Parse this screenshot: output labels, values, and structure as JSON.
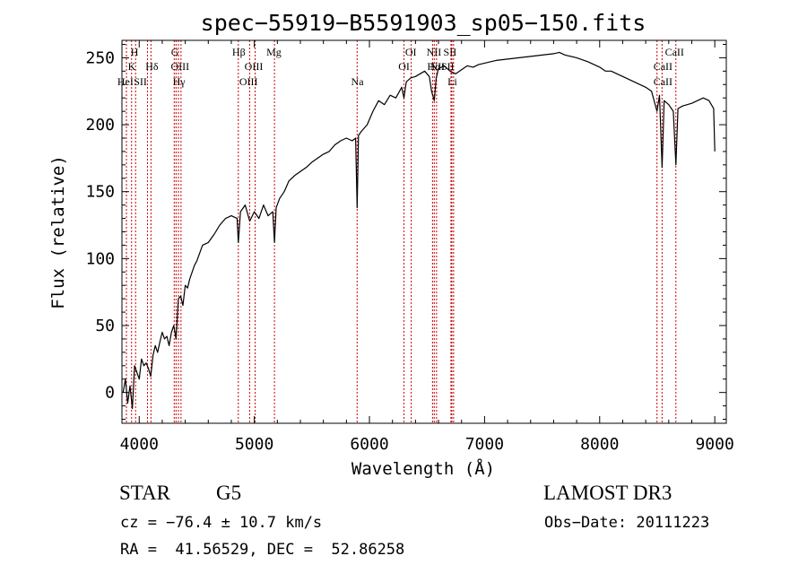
{
  "chart_data": {
    "type": "line",
    "title": "spec−55919−B5591903_sp05−150.fits",
    "xlabel": "Wavelength (Å)",
    "ylabel": "Flux (relative)",
    "xlim": [
      3850,
      9100
    ],
    "ylim": [
      -23,
      263
    ],
    "x_ticks": [
      4000,
      5000,
      6000,
      7000,
      8000,
      9000
    ],
    "y_ticks": [
      0,
      50,
      100,
      150,
      200,
      250
    ],
    "grid": false,
    "colors": {
      "line": "#000000",
      "marker": "#cc0000",
      "axis": "#000000"
    },
    "series": [
      {
        "name": "flux",
        "x": [
          3860,
          3880,
          3900,
          3920,
          3940,
          3960,
          3980,
          4000,
          4020,
          4040,
          4060,
          4080,
          4100,
          4120,
          4140,
          4160,
          4180,
          4200,
          4220,
          4240,
          4260,
          4280,
          4300,
          4320,
          4340,
          4360,
          4380,
          4400,
          4420,
          4440,
          4460,
          4480,
          4500,
          4550,
          4600,
          4650,
          4700,
          4750,
          4800,
          4850,
          4861,
          4880,
          4920,
          4960,
          5000,
          5040,
          5080,
          5120,
          5160,
          5175,
          5190,
          5220,
          5260,
          5300,
          5350,
          5400,
          5450,
          5500,
          5550,
          5600,
          5650,
          5700,
          5750,
          5800,
          5850,
          5880,
          5893,
          5905,
          5930,
          5980,
          6030,
          6080,
          6130,
          6180,
          6230,
          6280,
          6300,
          6320,
          6360,
          6400,
          6440,
          6480,
          6520,
          6540,
          6563,
          6580,
          6600,
          6650,
          6700,
          6750,
          6800,
          6850,
          6900,
          6950,
          7000,
          7100,
          7200,
          7300,
          7400,
          7500,
          7600,
          7650,
          7700,
          7800,
          7900,
          8000,
          8050,
          8100,
          8200,
          8300,
          8400,
          8450,
          8498,
          8520,
          8542,
          8560,
          8600,
          8640,
          8662,
          8680,
          8720,
          8760,
          8800,
          8850,
          8900,
          8950,
          8990,
          9000
        ],
        "values": [
          0,
          10,
          -8,
          5,
          -12,
          20,
          15,
          10,
          25,
          20,
          22,
          18,
          12,
          28,
          35,
          30,
          38,
          45,
          40,
          42,
          35,
          45,
          50,
          40,
          70,
          72,
          65,
          80,
          78,
          85,
          90,
          95,
          98,
          110,
          112,
          118,
          125,
          130,
          132,
          130,
          112,
          135,
          140,
          128,
          135,
          130,
          140,
          132,
          135,
          112,
          138,
          145,
          150,
          158,
          162,
          165,
          168,
          172,
          175,
          178,
          180,
          185,
          188,
          190,
          188,
          190,
          138,
          192,
          195,
          200,
          210,
          218,
          215,
          222,
          220,
          228,
          220,
          232,
          235,
          236,
          238,
          240,
          236,
          225,
          218,
          235,
          242,
          244,
          240,
          238,
          241,
          244,
          243,
          245,
          246,
          248,
          249,
          250,
          251,
          252,
          253,
          254,
          252,
          250,
          247,
          243,
          240,
          240,
          236,
          232,
          228,
          225,
          210,
          222,
          168,
          218,
          215,
          210,
          170,
          212,
          214,
          215,
          216,
          218,
          220,
          218,
          212,
          180
        ]
      }
    ],
    "lines": [
      {
        "label": "He I",
        "lambda": 3889
      },
      {
        "label": "H",
        "lambda": 3933.7
      },
      {
        "label": "K",
        "lambda": 3968.5
      },
      {
        "label": "S II",
        "lambda": 4072
      },
      {
        "label": "Hδ",
        "lambda": 4102
      },
      {
        "label": "G",
        "lambda": 4304
      },
      {
        "label": "O III",
        "lambda": 4320
      },
      {
        "label": "Hγ",
        "lambda": 4340.5
      },
      {
        "label": "O III",
        "lambda": 4363
      },
      {
        "label": "Hβ",
        "lambda": 4861
      },
      {
        "label": "O III",
        "lambda": 4959
      },
      {
        "label": "O III",
        "lambda": 5007
      },
      {
        "label": "Mg",
        "lambda": 5175
      },
      {
        "label": "Na",
        "lambda": 5893
      },
      {
        "label": "O I",
        "lambda": 6300
      },
      {
        "label": "O I",
        "lambda": 6363
      },
      {
        "label": "N II",
        "lambda": 6548
      },
      {
        "label": "Hα",
        "lambda": 6563
      },
      {
        "label": "N II",
        "lambda": 6583
      },
      {
        "label": "Li",
        "lambda": 6708
      },
      {
        "label": "S II",
        "lambda": 6716
      },
      {
        "label": "S II",
        "lambda": 6731
      },
      {
        "label": "Ca II",
        "lambda": 8498
      },
      {
        "label": "Ca II",
        "lambda": 8542
      },
      {
        "label": "Ca II",
        "lambda": 8662
      }
    ],
    "line_labels": [
      {
        "text": "H",
        "lambda": 3960,
        "row": 1
      },
      {
        "text": "K",
        "lambda": 3935,
        "row": 2
      },
      {
        "text": "HeI",
        "lambda": 3880,
        "row": 3
      },
      {
        "text": "SII",
        "lambda": 4010,
        "row": 3
      },
      {
        "text": "Hδ",
        "lambda": 4110,
        "row": 2
      },
      {
        "text": "G",
        "lambda": 4310,
        "row": 1
      },
      {
        "text": "OIII",
        "lambda": 4355,
        "row": 2
      },
      {
        "text": "Hγ",
        "lambda": 4345,
        "row": 3
      },
      {
        "text": "Hβ",
        "lambda": 4865,
        "row": 1
      },
      {
        "text": "OIII",
        "lambda": 4995,
        "row": 2
      },
      {
        "text": "OIII",
        "lambda": 4950,
        "row": 3
      },
      {
        "text": "Mg",
        "lambda": 5170,
        "row": 1
      },
      {
        "text": "Na",
        "lambda": 5895,
        "row": 3
      },
      {
        "text": "OI",
        "lambda": 6360,
        "row": 1
      },
      {
        "text": "OI",
        "lambda": 6300,
        "row": 2
      },
      {
        "text": "NII",
        "lambda": 6560,
        "row": 1
      },
      {
        "text": "SII",
        "lambda": 6700,
        "row": 1
      },
      {
        "text": "Hα",
        "lambda": 6560,
        "row": 2
      },
      {
        "text": "NII",
        "lambda": 6590,
        "row": 2
      },
      {
        "text": "SII",
        "lambda": 6680,
        "row": 2
      },
      {
        "text": "Li",
        "lambda": 6720,
        "row": 3
      },
      {
        "text": "CaII",
        "lambda": 8650,
        "row": 1
      },
      {
        "text": "CaII",
        "lambda": 8550,
        "row": 2
      },
      {
        "text": "CaII",
        "lambda": 8550,
        "row": 3
      }
    ]
  },
  "info": {
    "object_class": "STAR",
    "subclass": "G5",
    "survey": "LAMOST DR3",
    "redshift": "cz = −76.4 ± 10.7 km/s",
    "obs_date": "Obs−Date: 20111223",
    "coords": "RA =  41.56529, DEC =  52.86258"
  }
}
